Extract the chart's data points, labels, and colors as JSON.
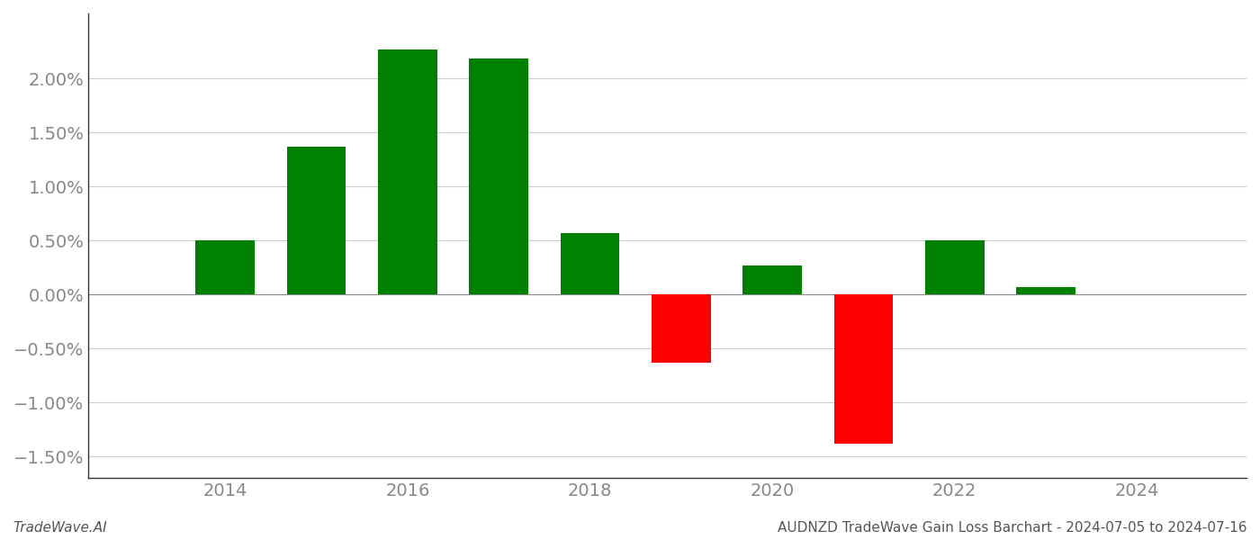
{
  "years": [
    2014,
    2015,
    2016,
    2017,
    2018,
    2019,
    2020,
    2021,
    2022,
    2023
  ],
  "values": [
    0.005,
    0.0137,
    0.0227,
    0.0218,
    0.0057,
    -0.0063,
    0.0027,
    -0.0138,
    0.005,
    0.0007
  ],
  "colors": [
    "#008000",
    "#008000",
    "#008000",
    "#008000",
    "#008000",
    "#ff0000",
    "#008000",
    "#ff0000",
    "#008000",
    "#008000"
  ],
  "bar_width": 0.65,
  "ylim": [
    -0.017,
    0.026
  ],
  "yticks": [
    -0.015,
    -0.01,
    -0.005,
    0.0,
    0.005,
    0.01,
    0.015,
    0.02
  ],
  "ytick_labels": [
    "−1.50%",
    "−1.00%",
    "−0.50%",
    "0.00%",
    "0.50%",
    "1.00%",
    "1.50%",
    "2.00%"
  ],
  "xlim": [
    2012.5,
    2025.2
  ],
  "xticks": [
    2014,
    2016,
    2018,
    2020,
    2022,
    2024
  ],
  "background_color": "#ffffff",
  "grid_color": "#cccccc",
  "footer_left": "TradeWave.AI",
  "footer_right": "AUDNZD TradeWave Gain Loss Barchart - 2024-07-05 to 2024-07-16",
  "footer_fontsize": 11,
  "tick_fontsize": 14,
  "spine_color": "#999999"
}
